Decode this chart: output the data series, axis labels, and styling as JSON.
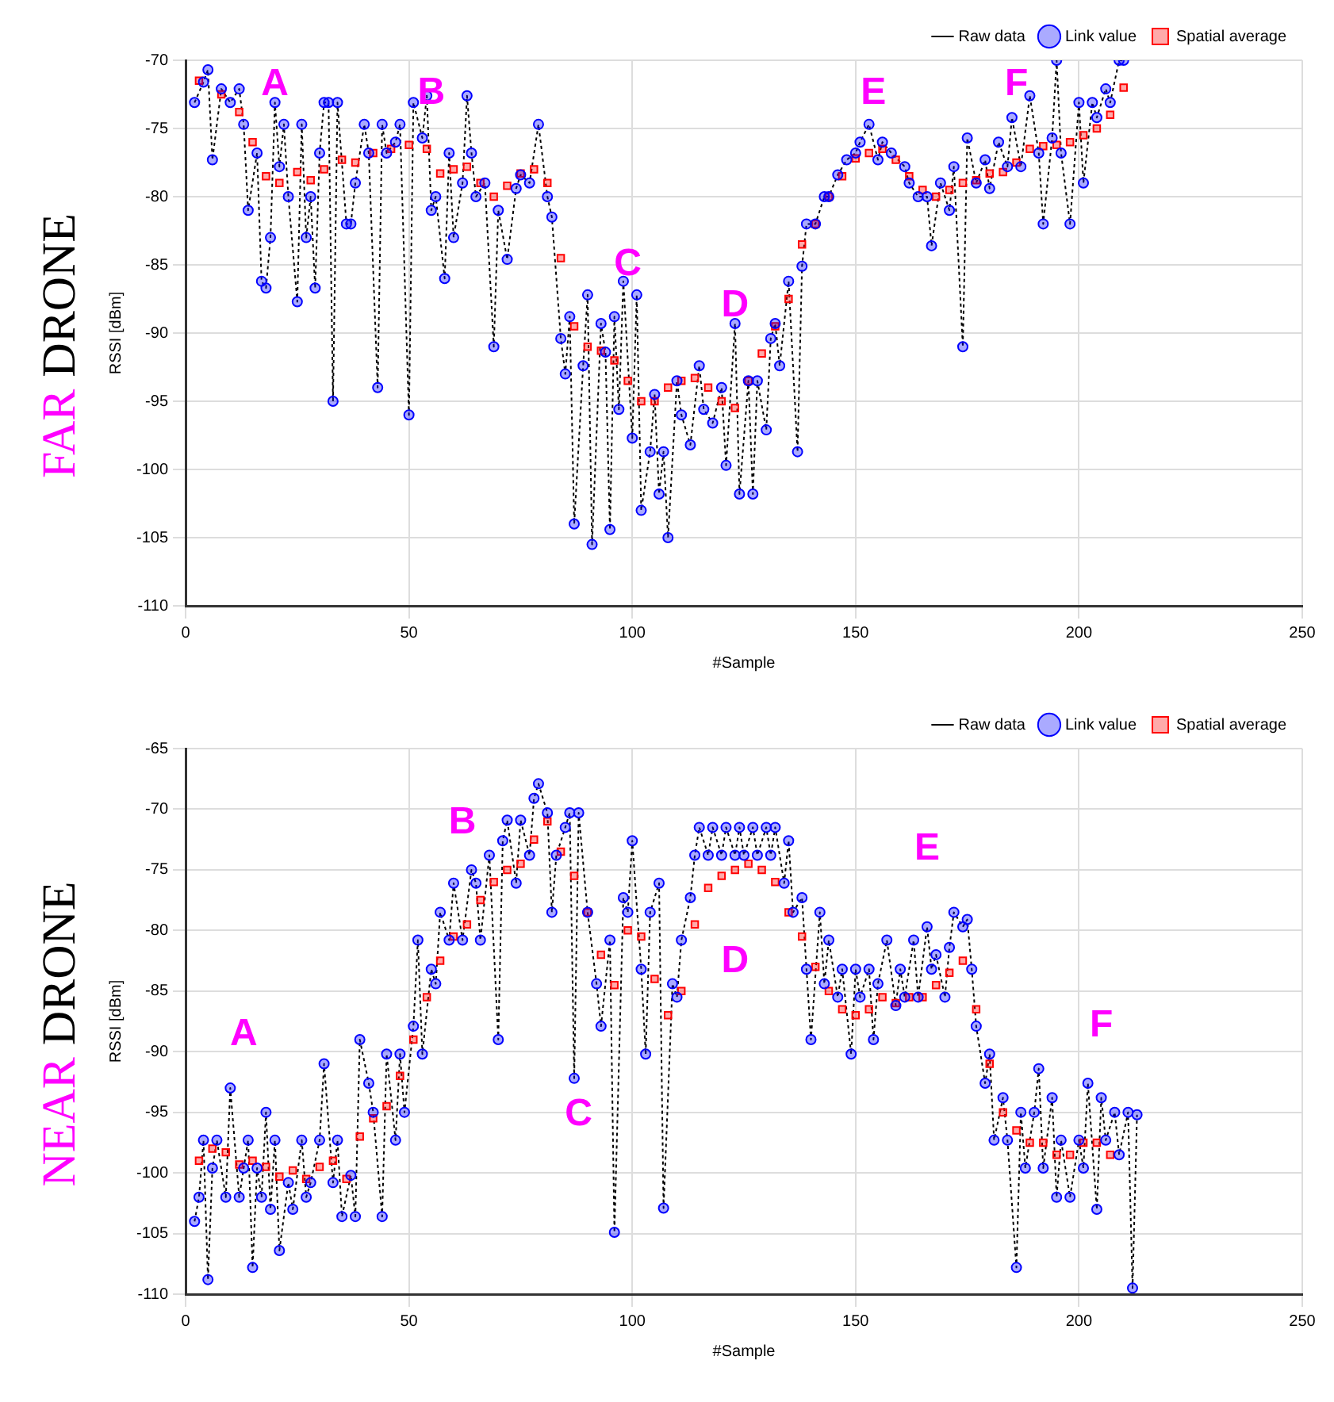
{
  "chart_data": [
    {
      "type": "scatter",
      "title": "FAR DRONE",
      "xlabel": "#Sample",
      "ylabel": "RSSI [dBm]",
      "xlim": [
        0,
        250
      ],
      "xticks": [
        0,
        50,
        100,
        150,
        200,
        250
      ],
      "ylim": [
        -110,
        -70
      ],
      "yticks": [
        -110,
        -105,
        -100,
        -95,
        -90,
        -85,
        -80,
        -75,
        -70
      ],
      "grid": true,
      "legend": "top right",
      "annotations": [
        "A",
        "B",
        "C",
        "D",
        "E",
        "F"
      ],
      "series": [
        {
          "name": "Raw data",
          "type": "line",
          "color": "#000000",
          "line_style": "dotted",
          "marker": "none",
          "x": [
            2,
            4,
            5,
            6,
            8,
            10,
            12,
            13,
            14,
            16,
            17,
            18,
            19,
            20,
            21,
            22,
            23,
            25,
            26,
            27,
            28,
            29,
            30,
            31,
            32,
            33,
            34,
            36,
            37,
            38,
            40,
            41,
            43,
            44,
            45,
            47,
            48,
            50,
            51,
            53,
            54,
            55,
            56,
            58,
            59,
            60,
            62,
            63,
            64,
            65,
            67,
            69,
            70,
            72,
            74,
            75,
            77,
            79,
            81,
            82,
            84,
            85,
            86,
            87,
            89,
            90,
            91,
            93,
            94,
            95,
            96,
            97,
            98,
            100,
            101,
            102,
            104,
            105,
            106,
            107,
            108,
            110,
            111,
            113,
            115,
            116,
            118,
            120,
            121,
            123,
            124,
            126,
            127,
            128,
            130,
            131,
            132,
            133,
            135,
            137,
            138,
            139,
            141,
            143,
            144,
            146,
            148,
            150,
            151,
            153,
            155,
            156,
            158,
            161,
            162,
            164,
            166,
            167,
            169,
            171,
            172,
            174,
            175,
            177,
            179,
            180,
            182,
            184,
            185,
            187,
            189,
            191,
            192,
            194,
            195,
            196,
            198,
            200,
            201,
            203,
            204,
            206,
            207,
            209,
            210
          ],
          "values": [
            -73.1,
            -71.6,
            -70.7,
            -77.3,
            -72.1,
            -73.1,
            -72.1,
            -74.7,
            -81,
            -76.8,
            -86.2,
            -86.7,
            -83,
            -73.1,
            -77.8,
            -74.7,
            -80,
            -87.7,
            -74.7,
            -83,
            -80,
            -86.7,
            -76.8,
            -73.1,
            -73.1,
            -95,
            -73.1,
            -82,
            -82,
            -79,
            -74.7,
            -76.8,
            -94,
            -74.7,
            -76.8,
            -76,
            -74.7,
            -96,
            -73.1,
            -75.7,
            -72.6,
            -81,
            -80,
            -86,
            -76.8,
            -83,
            -79,
            -72.6,
            -76.8,
            -80,
            -79,
            -91,
            -81,
            -84.6,
            -79.4,
            -78.4,
            -79,
            -74.7,
            -80,
            -81.5,
            -90.4,
            -93,
            -88.8,
            -104,
            -92.4,
            -87.2,
            -105.5,
            -89.3,
            -91.4,
            -104.4,
            -88.8,
            -95.6,
            -86.2,
            -97.7,
            -87.2,
            -103,
            -98.7,
            -94.5,
            -101.8,
            -98.7,
            -105,
            -93.5,
            -96,
            -98.2,
            -92.4,
            -95.6,
            -96.6,
            -94,
            -99.7,
            -89.3,
            -101.8,
            -93.5,
            -101.8,
            -93.5,
            -97.1,
            -90.4,
            -89.3,
            -92.4,
            -86.2,
            -98.7,
            -85.1,
            -82,
            -82,
            -80,
            -80,
            -78.4,
            -77.3,
            -76.8,
            -76,
            -74.7,
            -77.3,
            -76,
            -76.8,
            -77.8,
            -79,
            -80,
            -80,
            -83.6,
            -79,
            -81,
            -77.8,
            -91,
            -75.7,
            -79,
            -77.3,
            -79.4,
            -76,
            -77.8,
            -74.2,
            -77.8,
            -72.6,
            -76.8,
            -82,
            -75.7,
            -70,
            -76.8,
            -82,
            -73.1,
            -79,
            -73.1,
            -74.2,
            -72.1,
            -73.1,
            -70,
            -70
          ]
        },
        {
          "name": "Link value",
          "type": "scatter",
          "color": "#0000ff",
          "marker": "circle",
          "x": [
            2,
            4,
            5,
            6,
            8,
            10,
            12,
            13,
            14,
            16,
            17,
            18,
            19,
            20,
            21,
            22,
            23,
            25,
            26,
            27,
            28,
            29,
            30,
            31,
            32,
            33,
            34,
            36,
            37,
            38,
            40,
            41,
            43,
            44,
            45,
            47,
            48,
            50,
            51,
            53,
            54,
            55,
            56,
            58,
            59,
            60,
            62,
            63,
            64,
            65,
            67,
            69,
            70,
            72,
            74,
            75,
            77,
            79,
            81,
            82,
            84,
            85,
            86,
            87,
            89,
            90,
            91,
            93,
            94,
            95,
            96,
            97,
            98,
            100,
            101,
            102,
            104,
            105,
            106,
            107,
            108,
            110,
            111,
            113,
            115,
            116,
            118,
            120,
            121,
            123,
            124,
            126,
            127,
            128,
            130,
            131,
            132,
            133,
            135,
            137,
            138,
            139,
            141,
            143,
            144,
            146,
            148,
            150,
            151,
            153,
            155,
            156,
            158,
            161,
            162,
            164,
            166,
            167,
            169,
            171,
            172,
            174,
            175,
            177,
            179,
            180,
            182,
            184,
            185,
            187,
            189,
            191,
            192,
            194,
            195,
            196,
            198,
            200,
            201,
            203,
            204,
            206,
            207,
            209,
            210
          ],
          "values": [
            -73.1,
            -71.6,
            -70.7,
            -77.3,
            -72.1,
            -73.1,
            -72.1,
            -74.7,
            -81,
            -76.8,
            -86.2,
            -86.7,
            -83,
            -73.1,
            -77.8,
            -74.7,
            -80,
            -87.7,
            -74.7,
            -83,
            -80,
            -86.7,
            -76.8,
            -73.1,
            -73.1,
            -95,
            -73.1,
            -82,
            -82,
            -79,
            -74.7,
            -76.8,
            -94,
            -74.7,
            -76.8,
            -76,
            -74.7,
            -96,
            -73.1,
            -75.7,
            -72.6,
            -81,
            -80,
            -86,
            -76.8,
            -83,
            -79,
            -72.6,
            -76.8,
            -80,
            -79,
            -91,
            -81,
            -84.6,
            -79.4,
            -78.4,
            -79,
            -74.7,
            -80,
            -81.5,
            -90.4,
            -93,
            -88.8,
            -104,
            -92.4,
            -87.2,
            -105.5,
            -89.3,
            -91.4,
            -104.4,
            -88.8,
            -95.6,
            -86.2,
            -97.7,
            -87.2,
            -103,
            -98.7,
            -94.5,
            -101.8,
            -98.7,
            -105,
            -93.5,
            -96,
            -98.2,
            -92.4,
            -95.6,
            -96.6,
            -94,
            -99.7,
            -89.3,
            -101.8,
            -93.5,
            -101.8,
            -93.5,
            -97.1,
            -90.4,
            -89.3,
            -92.4,
            -86.2,
            -98.7,
            -85.1,
            -82,
            -82,
            -80,
            -80,
            -78.4,
            -77.3,
            -76.8,
            -76,
            -74.7,
            -77.3,
            -76,
            -76.8,
            -77.8,
            -79,
            -80,
            -80,
            -83.6,
            -79,
            -81,
            -77.8,
            -91,
            -75.7,
            -79,
            -77.3,
            -79.4,
            -76,
            -77.8,
            -74.2,
            -77.8,
            -72.6,
            -76.8,
            -82,
            -75.7,
            -70,
            -76.8,
            -82,
            -73.1,
            -79,
            -73.1,
            -74.2,
            -72.1,
            -73.1,
            -70,
            -70
          ]
        },
        {
          "name": "Spatial average",
          "type": "scatter",
          "color": "#ff0000",
          "marker": "square",
          "x": [
            3,
            8,
            12,
            15,
            18,
            21,
            25,
            28,
            31,
            35,
            38,
            42,
            46,
            50,
            54,
            57,
            60,
            63,
            66,
            69,
            72,
            75,
            78,
            81,
            84,
            87,
            90,
            93,
            96,
            99,
            102,
            105,
            108,
            111,
            114,
            117,
            120,
            123,
            126,
            129,
            132,
            135,
            138,
            141,
            144,
            147,
            150,
            153,
            156,
            159,
            162,
            165,
            168,
            171,
            174,
            177,
            180,
            183,
            186,
            189,
            192,
            195,
            198,
            201,
            204,
            207,
            210
          ],
          "values": [
            -71.5,
            -72.5,
            -73.8,
            -76,
            -78.5,
            -79,
            -78.2,
            -78.8,
            -78,
            -77.3,
            -77.5,
            -76.8,
            -76.5,
            -76.2,
            -76.5,
            -78.3,
            -78,
            -77.8,
            -79,
            -80,
            -79.2,
            -78.3,
            -78,
            -79,
            -84.5,
            -89.5,
            -91,
            -91.3,
            -92,
            -93.5,
            -95,
            -95,
            -94,
            -93.5,
            -93.3,
            -94,
            -95,
            -95.5,
            -93.5,
            -91.5,
            -89.5,
            -87.5,
            -83.5,
            -82,
            -80,
            -78.5,
            -77.2,
            -76.8,
            -76.5,
            -77.3,
            -78.5,
            -79.5,
            -80,
            -79.5,
            -79,
            -78.8,
            -78.3,
            -78.2,
            -77.5,
            -76.5,
            -76.3,
            -76.2,
            -76,
            -75.5,
            -75,
            -74,
            -72
          ]
        }
      ]
    },
    {
      "type": "scatter",
      "title": "NEAR DRONE",
      "xlabel": "#Sample",
      "ylabel": "RSSI [dBm]",
      "xlim": [
        0,
        250
      ],
      "xticks": [
        0,
        50,
        100,
        150,
        200,
        250
      ],
      "ylim": [
        -110,
        -65
      ],
      "yticks": [
        -110,
        -105,
        -100,
        -95,
        -90,
        -85,
        -80,
        -75,
        -70,
        -65
      ],
      "grid": true,
      "legend": "top right",
      "annotations": [
        "A",
        "B",
        "C",
        "D",
        "E",
        "F"
      ],
      "series": [
        {
          "name": "Raw data",
          "type": "line",
          "color": "#000000",
          "line_style": "dotted",
          "marker": "none",
          "x": [
            2,
            3,
            4,
            5,
            6,
            7,
            9,
            10,
            12,
            13,
            14,
            15,
            16,
            17,
            18,
            19,
            20,
            21,
            23,
            24,
            26,
            27,
            28,
            30,
            31,
            33,
            34,
            35,
            37,
            38,
            39,
            41,
            42,
            44,
            45,
            47,
            48,
            49,
            51,
            52,
            53,
            55,
            56,
            57,
            59,
            60,
            62,
            64,
            65,
            66,
            68,
            70,
            71,
            72,
            74,
            75,
            77,
            78,
            79,
            81,
            82,
            83,
            85,
            86,
            87,
            88,
            90,
            92,
            93,
            95,
            96,
            98,
            99,
            100,
            102,
            103,
            104,
            106,
            107,
            109,
            110,
            111,
            113,
            114,
            115,
            117,
            118,
            120,
            121,
            123,
            124,
            125,
            127,
            128,
            130,
            131,
            132,
            134,
            135,
            136,
            138,
            139,
            140,
            142,
            143,
            144,
            146,
            147,
            149,
            150,
            151,
            153,
            154,
            155,
            157,
            159,
            160,
            161,
            163,
            164,
            166,
            167,
            168,
            170,
            171,
            172,
            174,
            175,
            176,
            177,
            179,
            180,
            181,
            183,
            184,
            186,
            187,
            188,
            190,
            191,
            192,
            194,
            195,
            196,
            198,
            200,
            201,
            202,
            204,
            205,
            206,
            208,
            209,
            211,
            212,
            213
          ],
          "values": [
            -104,
            -102,
            -97.3,
            -108.8,
            -99.6,
            -97.3,
            -102,
            -93,
            -102,
            -99.6,
            -97.3,
            -107.8,
            -99.6,
            -102,
            -95,
            -103,
            -97.3,
            -106.4,
            -100.8,
            -103,
            -97.3,
            -102,
            -100.8,
            -97.3,
            -91,
            -100.8,
            -97.3,
            -103.6,
            -100.2,
            -103.6,
            -89,
            -92.6,
            -95,
            -103.6,
            -90.2,
            -97.3,
            -90.2,
            -95,
            -87.9,
            -80.8,
            -90.2,
            -83.2,
            -84.4,
            -78.5,
            -80.8,
            -76.1,
            -80.8,
            -75,
            -76.1,
            -80.8,
            -73.8,
            -89,
            -72.6,
            -70.9,
            -76.1,
            -70.9,
            -73.8,
            -69.1,
            -67.9,
            -70.3,
            -78.5,
            -73.8,
            -71.5,
            -70.3,
            -92.2,
            -70.3,
            -78.5,
            -84.4,
            -87.9,
            -80.8,
            -104.9,
            -77.3,
            -78.5,
            -72.6,
            -83.2,
            -90.2,
            -78.5,
            -76.1,
            -102.9,
            -84.4,
            -85.5,
            -80.8,
            -77.3,
            -73.8,
            -71.5,
            -73.8,
            -71.5,
            -73.8,
            -71.5,
            -73.8,
            -71.5,
            -73.8,
            -71.5,
            -73.8,
            -71.5,
            -73.8,
            -71.5,
            -76.1,
            -72.6,
            -78.5,
            -77.3,
            -83.2,
            -89,
            -78.5,
            -84.4,
            -80.8,
            -85.5,
            -83.2,
            -90.2,
            -83.2,
            -85.5,
            -83.2,
            -89,
            -84.4,
            -80.8,
            -86.2,
            -83.2,
            -85.5,
            -80.8,
            -85.5,
            -79.7,
            -83.2,
            -82,
            -85.5,
            -81.4,
            -78.5,
            -79.7,
            -79.1,
            -83.2,
            -87.9,
            -92.6,
            -90.2,
            -97.3,
            -93.8,
            -97.3,
            -107.8,
            -95,
            -99.6,
            -95,
            -91.4,
            -99.6,
            -93.8,
            -102,
            -97.3,
            -102,
            -97.3,
            -99.6,
            -92.6,
            -103,
            -93.8,
            -97.3,
            -95,
            -98.5,
            -95,
            -109.5,
            -95.2
          ]
        },
        {
          "name": "Link value",
          "type": "scatter",
          "color": "#0000ff",
          "marker": "circle",
          "x": [
            2,
            3,
            4,
            5,
            6,
            7,
            9,
            10,
            12,
            13,
            14,
            15,
            16,
            17,
            18,
            19,
            20,
            21,
            23,
            24,
            26,
            27,
            28,
            30,
            31,
            33,
            34,
            35,
            37,
            38,
            39,
            41,
            42,
            44,
            45,
            47,
            48,
            49,
            51,
            52,
            53,
            55,
            56,
            57,
            59,
            60,
            62,
            64,
            65,
            66,
            68,
            70,
            71,
            72,
            74,
            75,
            77,
            78,
            79,
            81,
            82,
            83,
            85,
            86,
            87,
            88,
            90,
            92,
            93,
            95,
            96,
            98,
            99,
            100,
            102,
            103,
            104,
            106,
            107,
            109,
            110,
            111,
            113,
            114,
            115,
            117,
            118,
            120,
            121,
            123,
            124,
            125,
            127,
            128,
            130,
            131,
            132,
            134,
            135,
            136,
            138,
            139,
            140,
            142,
            143,
            144,
            146,
            147,
            149,
            150,
            151,
            153,
            154,
            155,
            157,
            159,
            160,
            161,
            163,
            164,
            166,
            167,
            168,
            170,
            171,
            172,
            174,
            175,
            176,
            177,
            179,
            180,
            181,
            183,
            184,
            186,
            187,
            188,
            190,
            191,
            192,
            194,
            195,
            196,
            198,
            200,
            201,
            202,
            204,
            205,
            206,
            208,
            209,
            211,
            212,
            213
          ],
          "values": [
            -104,
            -102,
            -97.3,
            -108.8,
            -99.6,
            -97.3,
            -102,
            -93,
            -102,
            -99.6,
            -97.3,
            -107.8,
            -99.6,
            -102,
            -95,
            -103,
            -97.3,
            -106.4,
            -100.8,
            -103,
            -97.3,
            -102,
            -100.8,
            -97.3,
            -91,
            -100.8,
            -97.3,
            -103.6,
            -100.2,
            -103.6,
            -89,
            -92.6,
            -95,
            -103.6,
            -90.2,
            -97.3,
            -90.2,
            -95,
            -87.9,
            -80.8,
            -90.2,
            -83.2,
            -84.4,
            -78.5,
            -80.8,
            -76.1,
            -80.8,
            -75,
            -76.1,
            -80.8,
            -73.8,
            -89,
            -72.6,
            -70.9,
            -76.1,
            -70.9,
            -73.8,
            -69.1,
            -67.9,
            -70.3,
            -78.5,
            -73.8,
            -71.5,
            -70.3,
            -92.2,
            -70.3,
            -78.5,
            -84.4,
            -87.9,
            -80.8,
            -104.9,
            -77.3,
            -78.5,
            -72.6,
            -83.2,
            -90.2,
            -78.5,
            -76.1,
            -102.9,
            -84.4,
            -85.5,
            -80.8,
            -77.3,
            -73.8,
            -71.5,
            -73.8,
            -71.5,
            -73.8,
            -71.5,
            -73.8,
            -71.5,
            -73.8,
            -71.5,
            -73.8,
            -71.5,
            -73.8,
            -71.5,
            -76.1,
            -72.6,
            -78.5,
            -77.3,
            -83.2,
            -89,
            -78.5,
            -84.4,
            -80.8,
            -85.5,
            -83.2,
            -90.2,
            -83.2,
            -85.5,
            -83.2,
            -89,
            -84.4,
            -80.8,
            -86.2,
            -83.2,
            -85.5,
            -80.8,
            -85.5,
            -79.7,
            -83.2,
            -82,
            -85.5,
            -81.4,
            -78.5,
            -79.7,
            -79.1,
            -83.2,
            -87.9,
            -92.6,
            -90.2,
            -97.3,
            -93.8,
            -97.3,
            -107.8,
            -95,
            -99.6,
            -95,
            -91.4,
            -99.6,
            -93.8,
            -102,
            -97.3,
            -102,
            -97.3,
            -99.6,
            -92.6,
            -103,
            -93.8,
            -97.3,
            -95,
            -98.5,
            -95,
            -109.5,
            -95.2
          ]
        },
        {
          "name": "Spatial average",
          "type": "scatter",
          "color": "#ff0000",
          "marker": "square",
          "x": [
            3,
            6,
            9,
            12,
            15,
            18,
            21,
            24,
            27,
            30,
            33,
            36,
            39,
            42,
            45,
            48,
            51,
            54,
            57,
            60,
            63,
            66,
            69,
            72,
            75,
            78,
            81,
            84,
            87,
            90,
            93,
            96,
            99,
            102,
            105,
            108,
            111,
            114,
            117,
            120,
            123,
            126,
            129,
            132,
            135,
            138,
            141,
            144,
            147,
            150,
            153,
            156,
            159,
            162,
            165,
            168,
            171,
            174,
            177,
            180,
            183,
            186,
            189,
            192,
            195,
            198,
            201,
            204,
            207
          ],
          "values": [
            -99,
            -98,
            -98.3,
            -99.3,
            -99,
            -99.5,
            -100.3,
            -99.8,
            -100.5,
            -99.5,
            -99,
            -100.5,
            -97,
            -95.5,
            -94.5,
            -92,
            -89,
            -85.5,
            -82.5,
            -80.5,
            -79.5,
            -77.5,
            -76,
            -75,
            -74.5,
            -72.5,
            -71,
            -73.5,
            -75.5,
            -78.5,
            -82,
            -84.5,
            -80,
            -80.5,
            -84,
            -87,
            -85,
            -79.5,
            -76.5,
            -75.5,
            -75,
            -74.5,
            -75,
            -76,
            -78.5,
            -80.5,
            -83,
            -85,
            -86.5,
            -87,
            -86.5,
            -85.5,
            -86,
            -85.5,
            -85.5,
            -84.5,
            -83.5,
            -82.5,
            -86.5,
            -91,
            -95,
            -96.5,
            -97.5,
            -97.5,
            -98.5,
            -98.5,
            -97.5,
            -97.5,
            -98.5
          ]
        }
      ]
    }
  ]
}
